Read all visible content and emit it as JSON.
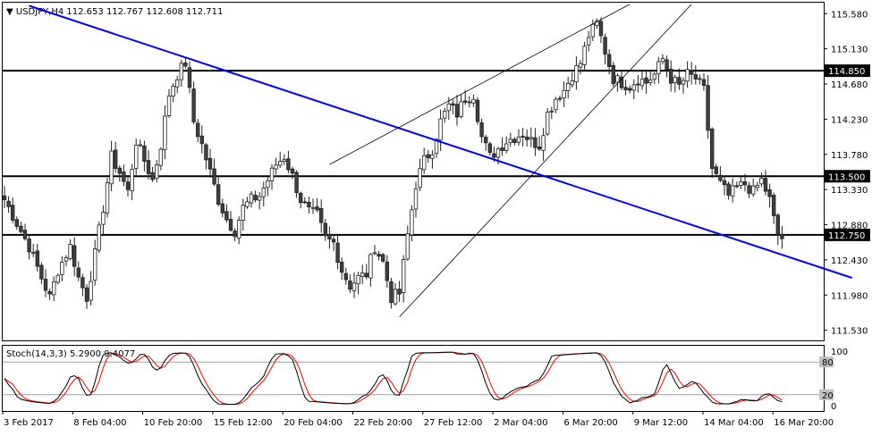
{
  "chart_data": [
    {
      "type": "candlestick",
      "title": "USDJPY,H4  112.653 112.767 112.608 112.711",
      "symbol": "USDJPY",
      "timeframe": "H4",
      "ohlc_readout": "112.653 112.767 112.608 112.711",
      "ylim": [
        111.4,
        115.72
      ],
      "price_labels": [
        "115.580",
        "115.130",
        "114.680",
        "114.230",
        "113.780",
        "113.330",
        "112.880",
        "112.430",
        "111.980",
        "111.530"
      ],
      "x_labels": [
        "3 Feb 2017",
        "8 Feb 04:00",
        "10 Feb 20:00",
        "15 Feb 12:00",
        "20 Feb 04:00",
        "22 Feb 20:00",
        "27 Feb 12:00",
        "2 Mar 04:00",
        "6 Mar 20:00",
        "9 Mar 12:00",
        "14 Mar 04:00",
        "16 Mar 20:00"
      ],
      "horizontal_levels": [
        {
          "value": 114.85,
          "label": "114.850"
        },
        {
          "value": 113.5,
          "label": "113.500"
        },
        {
          "value": 112.75,
          "label": "112.750"
        }
      ],
      "waypoints": [
        [
          0,
          113.2
        ],
        [
          3,
          112.9
        ],
        [
          6,
          112.6
        ],
        [
          9,
          112.2
        ],
        [
          11,
          111.95
        ],
        [
          13,
          112.3
        ],
        [
          16,
          112.6
        ],
        [
          18,
          112.2
        ],
        [
          20,
          111.95
        ],
        [
          22,
          112.5
        ],
        [
          24,
          113.1
        ],
        [
          26,
          113.75
        ],
        [
          28,
          113.55
        ],
        [
          30,
          113.3
        ],
        [
          32,
          113.95
        ],
        [
          34,
          113.7
        ],
        [
          36,
          113.45
        ],
        [
          38,
          113.9
        ],
        [
          40,
          114.55
        ],
        [
          42,
          114.8
        ],
        [
          44,
          114.95
        ],
        [
          46,
          114.2
        ],
        [
          48,
          113.9
        ],
        [
          50,
          113.55
        ],
        [
          52,
          113.2
        ],
        [
          54,
          112.95
        ],
        [
          56,
          112.8
        ],
        [
          58,
          113.1
        ],
        [
          60,
          113.2
        ],
        [
          62,
          113.25
        ],
        [
          64,
          113.45
        ],
        [
          66,
          113.65
        ],
        [
          68,
          113.75
        ],
        [
          70,
          113.5
        ],
        [
          72,
          113.2
        ],
        [
          74,
          113.05
        ],
        [
          76,
          113.0
        ],
        [
          78,
          112.7
        ],
        [
          80,
          112.65
        ],
        [
          82,
          112.3
        ],
        [
          84,
          112.1
        ],
        [
          86,
          112.2
        ],
        [
          88,
          112.25
        ],
        [
          90,
          112.6
        ],
        [
          92,
          112.4
        ],
        [
          94,
          111.95
        ],
        [
          96,
          112.0
        ],
        [
          98,
          112.75
        ],
        [
          100,
          113.4
        ],
        [
          102,
          113.7
        ],
        [
          104,
          113.85
        ],
        [
          106,
          114.2
        ],
        [
          108,
          114.4
        ],
        [
          110,
          114.3
        ],
        [
          112,
          114.5
        ],
        [
          114,
          114.55
        ],
        [
          116,
          114.0
        ],
        [
          118,
          113.75
        ],
        [
          120,
          113.85
        ],
        [
          122,
          113.95
        ],
        [
          124,
          114.0
        ],
        [
          126,
          114.05
        ],
        [
          128,
          113.95
        ],
        [
          130,
          113.9
        ],
        [
          132,
          114.3
        ],
        [
          134,
          114.5
        ],
        [
          136,
          114.6
        ],
        [
          138,
          114.8
        ],
        [
          140,
          114.95
        ],
        [
          142,
          115.3
        ],
        [
          144,
          115.45
        ],
        [
          146,
          115.1
        ],
        [
          148,
          114.75
        ],
        [
          150,
          114.7
        ],
        [
          152,
          114.65
        ],
        [
          154,
          114.75
        ],
        [
          156,
          114.7
        ],
        [
          158,
          114.8
        ],
        [
          160,
          115.0
        ],
        [
          162,
          114.75
        ],
        [
          164,
          114.65
        ],
        [
          166,
          114.8
        ],
        [
          168,
          114.75
        ],
        [
          170,
          114.6
        ],
        [
          172,
          113.6
        ],
        [
          174,
          113.4
        ],
        [
          176,
          113.25
        ],
        [
          178,
          113.35
        ],
        [
          180,
          113.4
        ],
        [
          182,
          113.3
        ],
        [
          184,
          113.45
        ],
        [
          186,
          113.2
        ],
        [
          187,
          112.95
        ],
        [
          188,
          112.75
        ],
        [
          189,
          112.71
        ]
      ],
      "trendlines": [
        {
          "name": "descending",
          "color": "#0000ff",
          "from": [
            6,
            115.68
          ],
          "to": [
            206,
            112.2
          ]
        },
        {
          "name": "channel-lower",
          "color": "#000000",
          "from": [
            96,
            111.7
          ],
          "to": [
            167,
            115.7
          ]
        },
        {
          "name": "channel-upper",
          "color": "#000000",
          "from": [
            79,
            113.65
          ],
          "to": [
            152,
            115.7
          ]
        }
      ],
      "colors": {
        "bull": "#ffffff",
        "bear": "#404040",
        "descending_line": "#0000ff",
        "channel": "#000000",
        "levels": "#000000"
      }
    },
    {
      "type": "line",
      "title": "Stoch(14,3,3) 5.2900 9.4077",
      "indicator": "Stoch(14,3,3)",
      "main_value": "5.2900",
      "signal_value": "9.4077",
      "ylim": [
        0,
        100
      ],
      "levels": [
        {
          "value": 80,
          "label": "80"
        },
        {
          "value": 20,
          "label": "20"
        }
      ],
      "scale_labels": [
        "100",
        "0"
      ],
      "series": [
        {
          "name": "main",
          "color": "#000000"
        },
        {
          "name": "signal",
          "color": "#ff0000"
        }
      ]
    }
  ]
}
